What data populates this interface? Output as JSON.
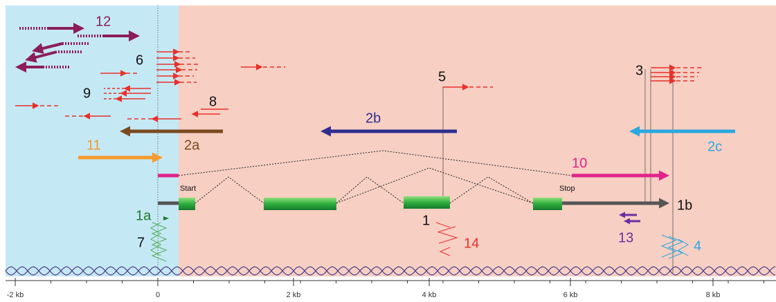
{
  "transcripts": [
    "12",
    "6",
    "9",
    "8",
    "5",
    "3",
    "2b",
    "2a",
    "2c",
    "11",
    "10",
    "1a",
    "1b",
    "1",
    "7",
    "14",
    "13",
    "4"
  ],
  "features": {
    "start": "Start",
    "stop": "Stop"
  },
  "axis": {
    "ticks": [
      "-2 kb",
      "0",
      "2 kb",
      "4 kb",
      "6 kb",
      "8 kb"
    ]
  }
}
